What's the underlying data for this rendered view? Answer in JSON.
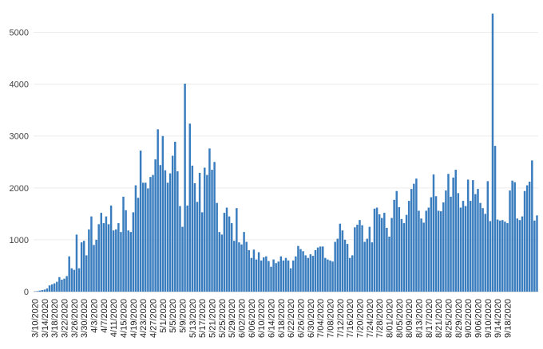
{
  "colors": {
    "bar": "#3a7dbf",
    "grid": "#ececec",
    "text": "#333333"
  },
  "chart_data": {
    "type": "bar",
    "title": "",
    "xlabel": "",
    "ylabel": "",
    "ylim": [
      0,
      5500
    ],
    "grid": true,
    "y_ticks": [
      0,
      1000,
      2000,
      3000,
      4000,
      5000
    ],
    "x_ticks": [
      "3/10/2020",
      "3/14/2020",
      "3/18/2020",
      "3/22/2020",
      "3/26/2020",
      "3/30/2020",
      "4/3/2020",
      "4/7/2020",
      "4/11/2020",
      "4/15/2020",
      "4/19/2020",
      "4/23/2020",
      "4/27/2020",
      "5/1/2020",
      "5/5/2020",
      "5/9/2020",
      "5/13/2020",
      "5/17/2020",
      "5/21/2020",
      "5/25/2020",
      "5/29/2020",
      "6/02/2020",
      "6/06/2020",
      "6/10/2020",
      "6/14/2020",
      "6/18/2020",
      "6/22/2020",
      "6/26/2020",
      "6/30/2020",
      "7/04/2020",
      "7/08/2020",
      "7/12/2020",
      "7/16/2020",
      "7/20/2020",
      "7/24/2020",
      "7/28/2020",
      "8/01/2020",
      "8/05/2020",
      "8/09/2020",
      "8/13/2020",
      "8/17/2020",
      "8/21/2020",
      "8/25/2020",
      "8/29/2020",
      "9/02/2020",
      "9/06/2020",
      "9/10/2020",
      "9/14/2020",
      "9/18/2020"
    ],
    "x_start": "3/10/2020",
    "x_end": "9/22/2020",
    "values": [
      5,
      10,
      20,
      30,
      40,
      60,
      120,
      140,
      160,
      190,
      280,
      230,
      250,
      300,
      680,
      450,
      420,
      1100,
      450,
      950,
      980,
      700,
      1200,
      1450,
      900,
      1000,
      1300,
      1520,
      1320,
      1450,
      1300,
      1660,
      1180,
      1200,
      1320,
      1150,
      1830,
      1570,
      1180,
      1150,
      1530,
      2050,
      1810,
      2720,
      2100,
      2100,
      1990,
      2210,
      2250,
      2550,
      3130,
      2440,
      3000,
      2340,
      2100,
      2280,
      2620,
      2890,
      2320,
      1650,
      1250,
      4010,
      1660,
      3240,
      2430,
      2090,
      1730,
      2290,
      1530,
      2390,
      2250,
      2760,
      2350,
      2500,
      1710,
      1150,
      1100,
      1520,
      1620,
      1450,
      1320,
      980,
      1610,
      950,
      910,
      1150,
      960,
      800,
      650,
      810,
      620,
      760,
      600,
      660,
      680,
      590,
      480,
      620,
      550,
      580,
      680,
      600,
      650,
      600,
      450,
      600,
      680,
      880,
      820,
      780,
      700,
      650,
      720,
      690,
      800,
      850,
      870,
      870,
      650,
      620,
      600,
      580,
      960,
      1020,
      1310,
      1180,
      1000,
      920,
      650,
      700,
      1240,
      1290,
      1380,
      1280,
      960,
      1020,
      1250,
      950,
      1600,
      1620,
      1490,
      1420,
      1520,
      1230,
      1060,
      1420,
      1770,
      1940,
      1630,
      1400,
      1320,
      1480,
      1750,
      1980,
      2080,
      2180,
      1560,
      1410,
      1330,
      1560,
      1620,
      1820,
      2260,
      1840,
      1560,
      1550,
      1720,
      1950,
      2270,
      1830,
      2200,
      2350,
      1900,
      1620,
      1750,
      1650,
      2160,
      1750,
      2150,
      1880,
      1980,
      1710,
      1610,
      1500,
      2130,
      1360,
      5360,
      2810,
      1390,
      1370,
      1380,
      1350,
      1320,
      1950,
      2140,
      2110,
      1410,
      1380,
      1450,
      1940,
      2050,
      2120,
      2530,
      1370,
      1470
    ]
  }
}
